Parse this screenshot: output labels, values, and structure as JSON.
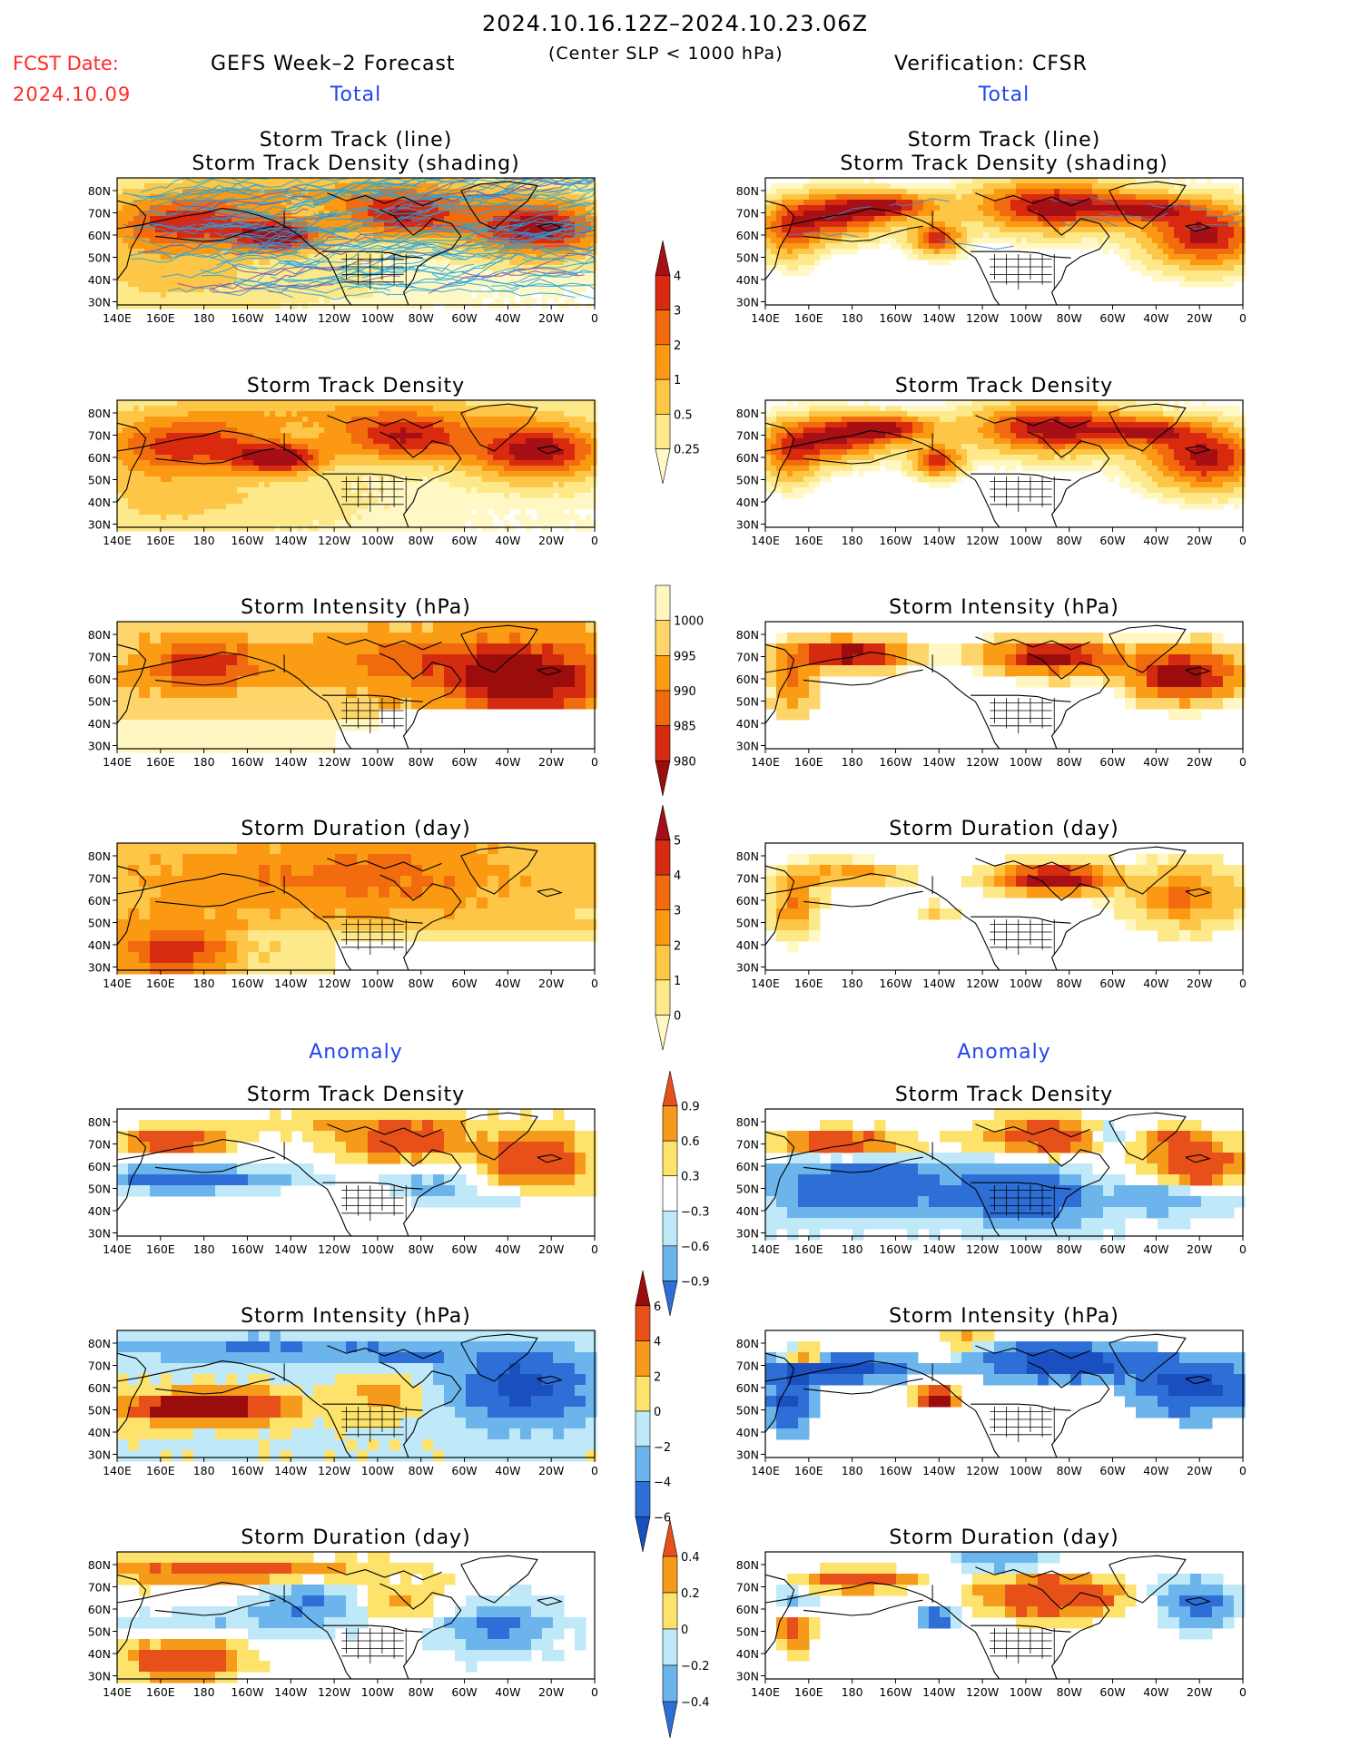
{
  "header": {
    "period": "2024.10.16.12Z–2024.10.23.06Z",
    "fcst_label": "FCST Date:",
    "fcst_date": "2024.10.09",
    "left_title": "GEFS Week–2 Forecast",
    "center_note": "(Center SLP < 1000 hPa)",
    "right_title": "Verification: CFSR"
  },
  "sections": {
    "total": "Total",
    "anomaly": "Anomaly"
  },
  "panel_titles": {
    "track_line": "Storm Track (line)",
    "track_density_shading": "Storm Track Density (shading)",
    "track_density": "Storm Track Density",
    "intensity": "Storm Intensity (hPa)",
    "duration": "Storm Duration (day)"
  },
  "axes": {
    "lon_ticks": [
      "140E",
      "160E",
      "180",
      "160W",
      "140W",
      "120W",
      "100W",
      "80W",
      "60W",
      "40W",
      "20W",
      "0"
    ],
    "lat_ticks": [
      "80N",
      "70N",
      "60N",
      "50N",
      "40N",
      "30N"
    ]
  },
  "colorbars": {
    "density": {
      "labels": [
        "4",
        "3",
        "2",
        "1",
        "0.5",
        "0.25"
      ],
      "colors": [
        "#a50f15",
        "#d9290e",
        "#f26b0f",
        "#fb9a12",
        "#fdc646",
        "#fde88a",
        "#fff8c4"
      ]
    },
    "intensity": {
      "labels": [
        "1000",
        "995",
        "990",
        "985",
        "980"
      ],
      "colors": [
        "#fff6c2",
        "#fdd56a",
        "#fb9d14",
        "#f06a0e",
        "#d42a10",
        "#9b0d0d"
      ]
    },
    "duration": {
      "labels": [
        "5",
        "4",
        "3",
        "2",
        "1",
        "0"
      ],
      "colors": [
        "#a50f15",
        "#d62c12",
        "#f26b0f",
        "#fb9a12",
        "#fdc646",
        "#fde88a",
        "#fff8c4"
      ]
    },
    "anom_density": {
      "labels": [
        "0.9",
        "0.6",
        "0.3",
        "−0.3",
        "−0.6",
        "−0.9"
      ],
      "colors": [
        "#e8501a",
        "#f59a1a",
        "#fde36c",
        "#ffffff",
        "#bfe9f8",
        "#6cb4ec",
        "#2d6fd6"
      ]
    },
    "anom_intensity": {
      "labels": [
        "6",
        "4",
        "2",
        "0",
        "−2",
        "−4",
        "−6"
      ],
      "colors": [
        "#9b0d0d",
        "#e8501a",
        "#f59a1a",
        "#fde36c",
        "#bfe9f8",
        "#6cb4ec",
        "#2d6fd6",
        "#1a4fc0"
      ]
    },
    "anom_duration": {
      "labels": [
        "0.4",
        "0.2",
        "0",
        "−0.2",
        "−0.4"
      ],
      "colors": [
        "#e8501a",
        "#f59a1a",
        "#fde36c",
        "#bfe9f8",
        "#6cb4ec",
        "#2d6fd6"
      ]
    }
  }
}
